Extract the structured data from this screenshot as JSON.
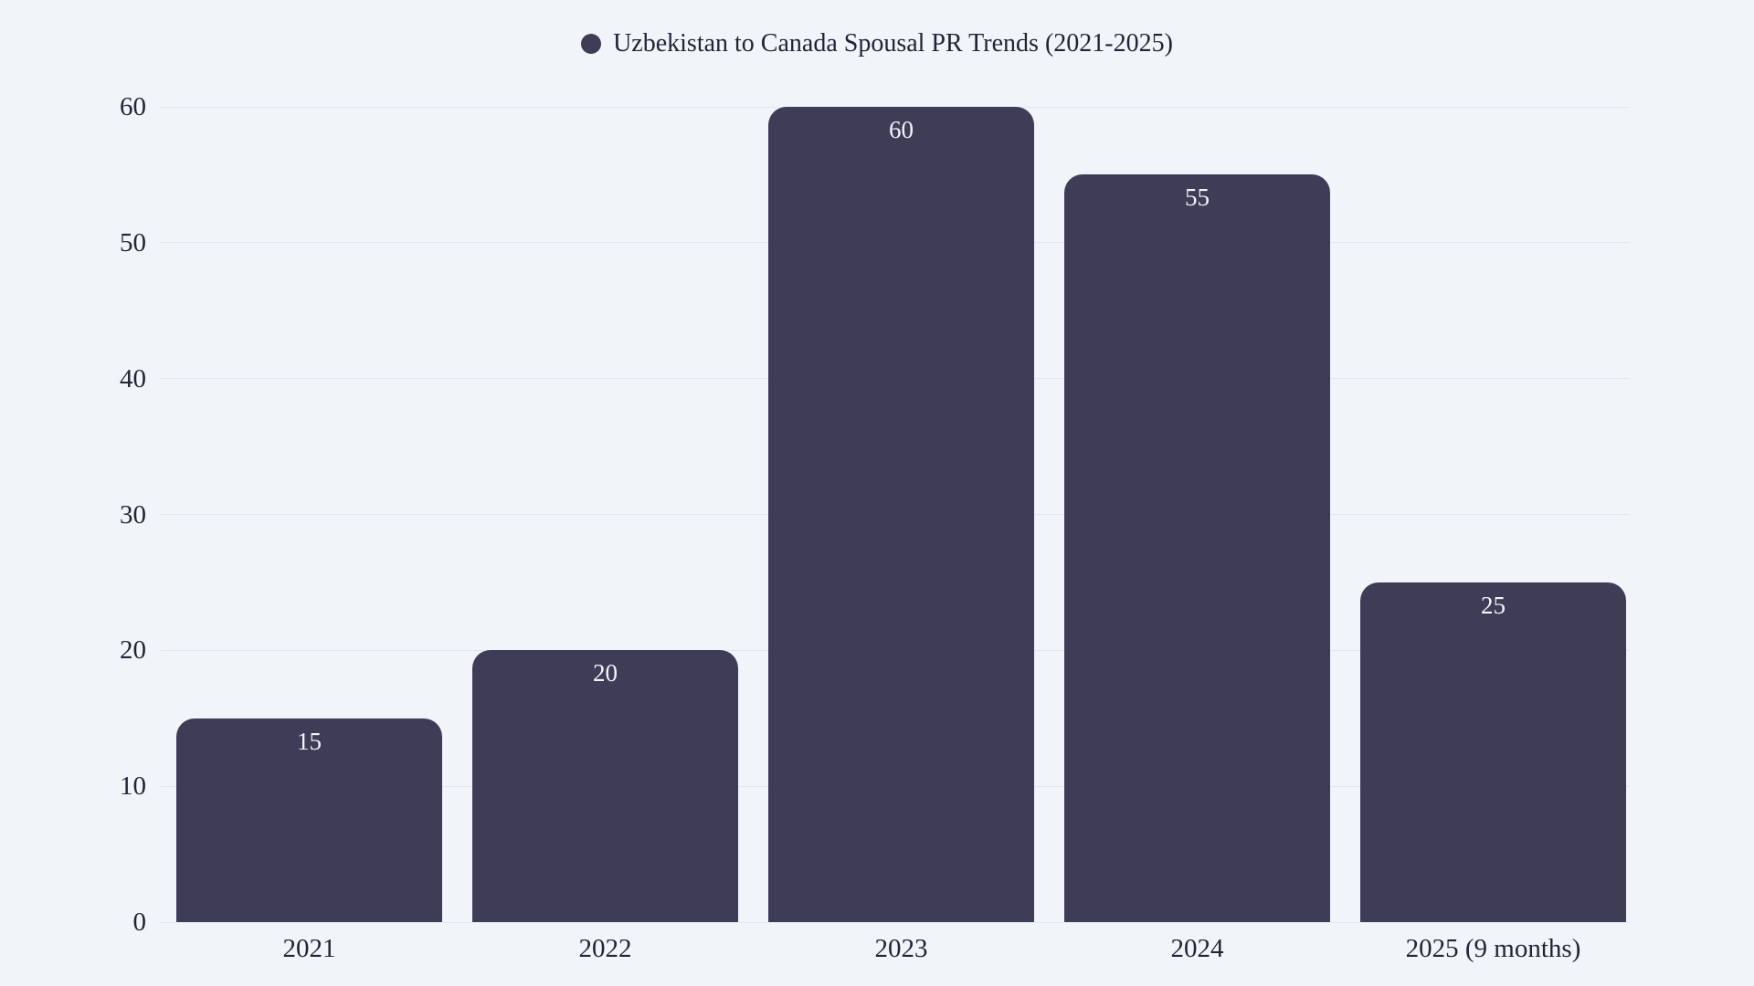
{
  "chart_data": {
    "type": "bar",
    "title": "Uzbekistan to Canada Spousal PR Trends (2021-2025)",
    "categories": [
      "2021",
      "2022",
      "2023",
      "2024",
      "2025 (9 months)"
    ],
    "values": [
      15,
      20,
      60,
      55,
      25
    ],
    "value_labels": [
      "15",
      "20",
      "60",
      "55",
      "25"
    ],
    "xlabel": "",
    "ylabel": "",
    "y_ticks": [
      "0",
      "10",
      "20",
      "30",
      "40",
      "50",
      "60"
    ],
    "ylim": [
      0,
      60
    ],
    "grid": "horizontal",
    "legend_position": "top-center",
    "legend_marker": "circle"
  },
  "colors": {
    "background": "#f1f5f9",
    "bar": "#3f3c57",
    "gridline": "#e2e7ee",
    "text": "#212338",
    "value_label": "#f1f5f9"
  }
}
